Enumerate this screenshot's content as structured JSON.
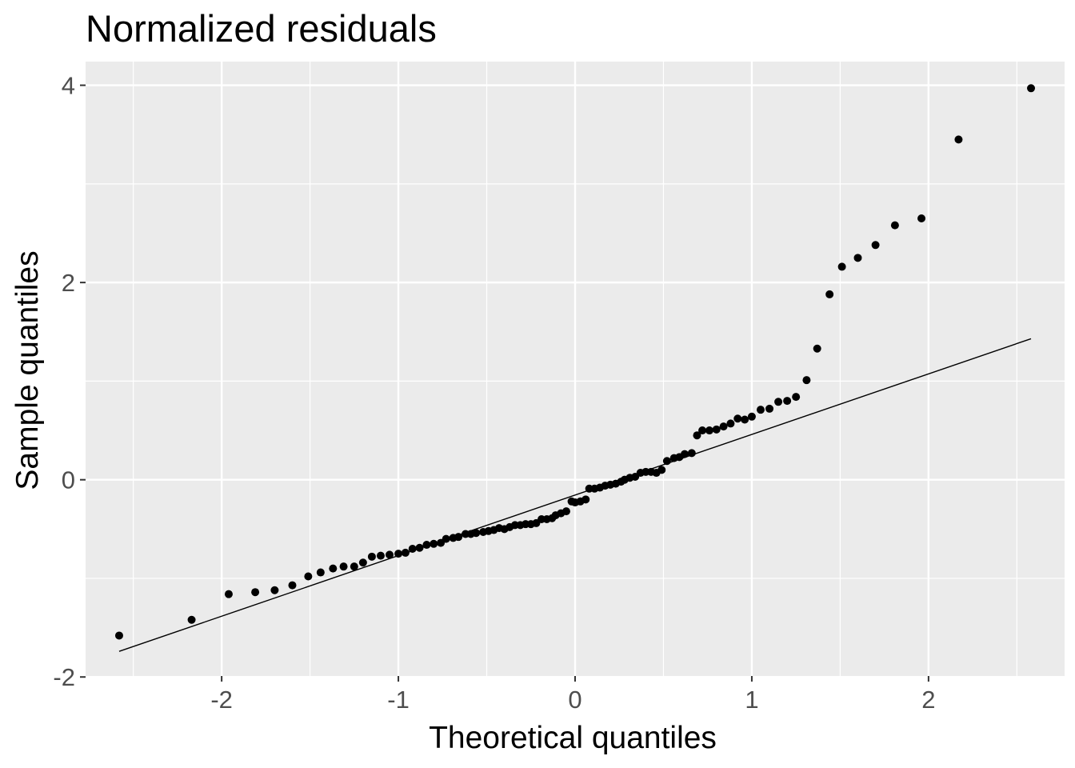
{
  "chart_data": {
    "type": "scatter",
    "title": "Normalized residuals",
    "xlabel": "Theoretical quantiles",
    "ylabel": "Sample quantiles",
    "xlim": [
      -2.77,
      2.77
    ],
    "ylim": [
      -1.99,
      4.24
    ],
    "x_ticks": [
      -2,
      -1,
      0,
      1,
      2
    ],
    "x_tick_labels": [
      "-2",
      "-1",
      "0",
      "1",
      "2"
    ],
    "y_ticks": [
      -2,
      0,
      2,
      4
    ],
    "y_tick_labels": [
      "-2",
      "0",
      "2",
      "4"
    ],
    "grid": true,
    "background": "#ebebeb",
    "grid_color": "#ffffff",
    "point_color": "#000000",
    "reference_line": {
      "x": [
        -2.58,
        2.58
      ],
      "y": [
        -1.74,
        1.43
      ],
      "color": "#000000"
    },
    "points": {
      "x": [
        -2.58,
        -2.17,
        -1.96,
        -1.81,
        -1.7,
        -1.6,
        -1.51,
        -1.44,
        -1.37,
        -1.31,
        -1.25,
        -1.2,
        -1.15,
        -1.1,
        -1.05,
        -1.0,
        -0.96,
        -0.92,
        -0.88,
        -0.84,
        -0.8,
        -0.76,
        -0.73,
        -0.69,
        -0.66,
        -0.62,
        -0.59,
        -0.56,
        -0.52,
        -0.49,
        -0.46,
        -0.43,
        -0.4,
        -0.37,
        -0.34,
        -0.31,
        -0.28,
        -0.25,
        -0.22,
        -0.19,
        -0.16,
        -0.13,
        -0.11,
        -0.08,
        -0.05,
        -0.02,
        0.0,
        0.03,
        0.06,
        0.08,
        0.11,
        0.14,
        0.17,
        0.2,
        0.23,
        0.26,
        0.28,
        0.31,
        0.34,
        0.37,
        0.4,
        0.43,
        0.46,
        0.49,
        0.52,
        0.56,
        0.59,
        0.62,
        0.66,
        0.69,
        0.72,
        0.76,
        0.8,
        0.84,
        0.88,
        0.92,
        0.96,
        1.0,
        1.05,
        1.1,
        1.15,
        1.2,
        1.25,
        1.31,
        1.37,
        1.44,
        1.51,
        1.6,
        1.7,
        1.81,
        1.96,
        2.17,
        2.58
      ],
      "y": [
        -1.58,
        -1.42,
        -1.16,
        -1.14,
        -1.12,
        -1.07,
        -0.98,
        -0.94,
        -0.9,
        -0.88,
        -0.88,
        -0.84,
        -0.78,
        -0.77,
        -0.76,
        -0.75,
        -0.74,
        -0.7,
        -0.69,
        -0.66,
        -0.65,
        -0.64,
        -0.6,
        -0.59,
        -0.58,
        -0.55,
        -0.55,
        -0.54,
        -0.53,
        -0.52,
        -0.51,
        -0.49,
        -0.5,
        -0.48,
        -0.46,
        -0.46,
        -0.45,
        -0.45,
        -0.44,
        -0.4,
        -0.4,
        -0.39,
        -0.36,
        -0.34,
        -0.32,
        -0.22,
        -0.23,
        -0.22,
        -0.2,
        -0.09,
        -0.09,
        -0.08,
        -0.06,
        -0.05,
        -0.04,
        -0.02,
        0.0,
        0.02,
        0.03,
        0.07,
        0.08,
        0.08,
        0.07,
        0.1,
        0.19,
        0.22,
        0.23,
        0.26,
        0.27,
        0.45,
        0.5,
        0.5,
        0.51,
        0.54,
        0.57,
        0.62,
        0.61,
        0.64,
        0.71,
        0.72,
        0.79,
        0.8,
        0.84,
        1.01,
        1.33,
        1.88,
        2.16,
        2.25,
        2.38,
        2.58,
        2.65,
        3.45,
        3.97
      ]
    }
  }
}
